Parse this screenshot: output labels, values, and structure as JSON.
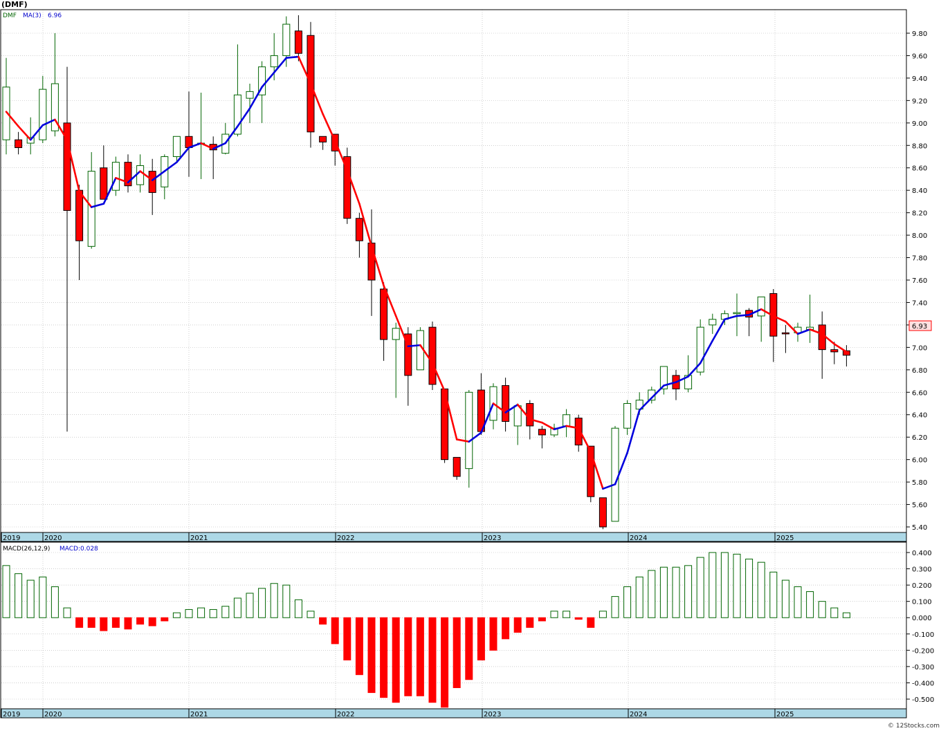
{
  "symbol_label": "(DMF)",
  "legend": {
    "ticker": "DMF",
    "ma_label": "MA(3)",
    "ma_value": "6.96"
  },
  "macd_legend": {
    "label": "MACD(26,12,9)",
    "value_label": "MACD:0.028"
  },
  "last_price_label": "6.93",
  "copyright": "© 12Stocks.com",
  "colors": {
    "up": "#006400",
    "down": "#ff0000",
    "ma_up": "#0000dd",
    "ma_down": "#ff0000",
    "axis_band": "#add8e6",
    "grid": "#b0b0b0"
  },
  "chart_data": [
    {
      "type": "candlestick",
      "title": "",
      "ylim": [
        5.4,
        9.8
      ],
      "yticks": [
        "9.80",
        "9.60",
        "9.40",
        "9.20",
        "9.00",
        "8.80",
        "8.60",
        "8.40",
        "8.20",
        "8.00",
        "7.80",
        "7.60",
        "7.40",
        "7.20",
        "7.00",
        "6.80",
        "6.60",
        "6.40",
        "6.20",
        "6.00",
        "5.80",
        "5.60",
        "5.40"
      ],
      "x_labels": [
        "2019",
        "2020",
        "2021",
        "2022",
        "2023",
        "2024",
        "2025"
      ],
      "grid": true,
      "candles": [
        {
          "o": 8.85,
          "h": 9.58,
          "l": 8.72,
          "c": 9.32
        },
        {
          "o": 8.85,
          "h": 8.92,
          "l": 8.72,
          "c": 8.78
        },
        {
          "o": 8.82,
          "h": 9.05,
          "l": 8.72,
          "c": 8.87
        },
        {
          "o": 8.85,
          "h": 9.42,
          "l": 8.82,
          "c": 9.3
        },
        {
          "o": 8.93,
          "h": 9.8,
          "l": 8.88,
          "c": 9.35
        },
        {
          "o": 9.0,
          "h": 9.5,
          "l": 6.25,
          "c": 8.22
        },
        {
          "o": 8.4,
          "h": 8.45,
          "l": 7.6,
          "c": 7.95
        },
        {
          "o": 7.9,
          "h": 8.74,
          "l": 7.88,
          "c": 8.57
        },
        {
          "o": 8.6,
          "h": 8.8,
          "l": 8.32,
          "c": 8.32
        },
        {
          "o": 8.4,
          "h": 8.7,
          "l": 8.35,
          "c": 8.65
        },
        {
          "o": 8.65,
          "h": 8.72,
          "l": 8.38,
          "c": 8.44
        },
        {
          "o": 8.45,
          "h": 8.72,
          "l": 8.38,
          "c": 8.62
        },
        {
          "o": 8.57,
          "h": 8.68,
          "l": 8.18,
          "c": 8.38
        },
        {
          "o": 8.43,
          "h": 8.72,
          "l": 8.32,
          "c": 8.7
        },
        {
          "o": 8.7,
          "h": 8.88,
          "l": 8.65,
          "c": 8.88
        },
        {
          "o": 8.88,
          "h": 9.28,
          "l": 8.52,
          "c": 8.78
        },
        {
          "o": 8.82,
          "h": 9.27,
          "l": 8.5,
          "c": 8.82
        },
        {
          "o": 8.81,
          "h": 8.88,
          "l": 8.5,
          "c": 8.76
        },
        {
          "o": 8.73,
          "h": 9.0,
          "l": 8.72,
          "c": 8.9
        },
        {
          "o": 8.9,
          "h": 9.7,
          "l": 8.88,
          "c": 9.25
        },
        {
          "o": 9.22,
          "h": 9.35,
          "l": 9.0,
          "c": 9.28
        },
        {
          "o": 9.25,
          "h": 9.55,
          "l": 9.0,
          "c": 9.5
        },
        {
          "o": 9.5,
          "h": 9.8,
          "l": 9.38,
          "c": 9.6
        },
        {
          "o": 9.6,
          "h": 9.95,
          "l": 9.5,
          "c": 9.88
        },
        {
          "o": 9.82,
          "h": 9.96,
          "l": 9.55,
          "c": 9.62
        },
        {
          "o": 9.78,
          "h": 9.9,
          "l": 8.78,
          "c": 8.92
        },
        {
          "o": 8.88,
          "h": 8.88,
          "l": 8.76,
          "c": 8.83
        },
        {
          "o": 8.9,
          "h": 8.9,
          "l": 8.62,
          "c": 8.75
        },
        {
          "o": 8.7,
          "h": 8.78,
          "l": 8.1,
          "c": 8.15
        },
        {
          "o": 8.15,
          "h": 8.2,
          "l": 7.8,
          "c": 7.95
        },
        {
          "o": 7.93,
          "h": 8.23,
          "l": 7.28,
          "c": 7.6
        },
        {
          "o": 7.52,
          "h": 7.58,
          "l": 6.88,
          "c": 7.07
        },
        {
          "o": 7.07,
          "h": 7.22,
          "l": 6.55,
          "c": 7.17
        },
        {
          "o": 7.12,
          "h": 7.18,
          "l": 6.48,
          "c": 6.75
        },
        {
          "o": 6.8,
          "h": 7.18,
          "l": 6.8,
          "c": 7.15
        },
        {
          "o": 7.18,
          "h": 7.23,
          "l": 6.62,
          "c": 6.67
        },
        {
          "o": 6.63,
          "h": 6.63,
          "l": 5.97,
          "c": 6.0
        },
        {
          "o": 6.02,
          "h": 6.02,
          "l": 5.82,
          "c": 5.85
        },
        {
          "o": 5.92,
          "h": 6.62,
          "l": 5.75,
          "c": 6.6
        },
        {
          "o": 6.62,
          "h": 6.77,
          "l": 6.22,
          "c": 6.25
        },
        {
          "o": 6.35,
          "h": 6.68,
          "l": 6.27,
          "c": 6.65
        },
        {
          "o": 6.66,
          "h": 6.73,
          "l": 6.25,
          "c": 6.34
        },
        {
          "o": 6.3,
          "h": 6.5,
          "l": 6.13,
          "c": 6.48
        },
        {
          "o": 6.5,
          "h": 6.53,
          "l": 6.18,
          "c": 6.3
        },
        {
          "o": 6.27,
          "h": 6.3,
          "l": 6.1,
          "c": 6.22
        },
        {
          "o": 6.22,
          "h": 6.32,
          "l": 6.2,
          "c": 6.28
        },
        {
          "o": 6.3,
          "h": 6.45,
          "l": 6.2,
          "c": 6.4
        },
        {
          "o": 6.37,
          "h": 6.4,
          "l": 6.07,
          "c": 6.13
        },
        {
          "o": 6.12,
          "h": 6.12,
          "l": 5.62,
          "c": 5.67
        },
        {
          "o": 5.66,
          "h": 5.66,
          "l": 5.38,
          "c": 5.4
        },
        {
          "o": 5.45,
          "h": 6.3,
          "l": 5.45,
          "c": 6.28
        },
        {
          "o": 6.28,
          "h": 6.53,
          "l": 6.22,
          "c": 6.5
        },
        {
          "o": 6.45,
          "h": 6.6,
          "l": 6.4,
          "c": 6.53
        },
        {
          "o": 6.53,
          "h": 6.65,
          "l": 6.5,
          "c": 6.62
        },
        {
          "o": 6.63,
          "h": 6.83,
          "l": 6.58,
          "c": 6.83
        },
        {
          "o": 6.75,
          "h": 6.8,
          "l": 6.53,
          "c": 6.63
        },
        {
          "o": 6.63,
          "h": 6.93,
          "l": 6.6,
          "c": 6.75
        },
        {
          "o": 6.78,
          "h": 7.25,
          "l": 6.75,
          "c": 7.18
        },
        {
          "o": 7.2,
          "h": 7.3,
          "l": 7.12,
          "c": 7.25
        },
        {
          "o": 7.25,
          "h": 7.33,
          "l": 7.2,
          "c": 7.3
        },
        {
          "o": 7.3,
          "h": 7.48,
          "l": 7.1,
          "c": 7.31
        },
        {
          "o": 7.33,
          "h": 7.35,
          "l": 7.1,
          "c": 7.27
        },
        {
          "o": 7.28,
          "h": 7.45,
          "l": 7.05,
          "c": 7.45
        },
        {
          "o": 7.48,
          "h": 7.52,
          "l": 6.87,
          "c": 7.1
        },
        {
          "o": 7.13,
          "h": 7.2,
          "l": 6.95,
          "c": 7.12
        },
        {
          "o": 7.13,
          "h": 7.22,
          "l": 7.05,
          "c": 7.18
        },
        {
          "o": 7.16,
          "h": 7.47,
          "l": 7.04,
          "c": 7.18
        },
        {
          "o": 7.2,
          "h": 7.32,
          "l": 6.72,
          "c": 6.98
        },
        {
          "o": 6.98,
          "h": 7.05,
          "l": 6.85,
          "c": 6.96
        },
        {
          "o": 6.97,
          "h": 7.02,
          "l": 6.83,
          "c": 6.93
        }
      ],
      "ma3": [
        9.1,
        8.97,
        8.85,
        8.98,
        9.03,
        8.85,
        8.39,
        8.25,
        8.28,
        8.51,
        8.47,
        8.57,
        8.49,
        8.57,
        8.65,
        8.78,
        8.82,
        8.77,
        8.82,
        8.97,
        9.13,
        9.32,
        9.45,
        9.58,
        9.59,
        9.35,
        9.08,
        8.84,
        8.58,
        8.28,
        7.9,
        7.55,
        7.28,
        7.01,
        7.02,
        6.86,
        6.61,
        6.18,
        6.16,
        6.24,
        6.5,
        6.42,
        6.49,
        6.36,
        6.33,
        6.27,
        6.3,
        6.28,
        6.07,
        5.74,
        5.78,
        6.06,
        6.44,
        6.55,
        6.66,
        6.69,
        6.74,
        6.86,
        7.06,
        7.25,
        7.28,
        7.29,
        7.34,
        7.28,
        7.23,
        7.12,
        7.16,
        7.12,
        7.03,
        6.96
      ]
    },
    {
      "type": "bar",
      "title": "",
      "ylim": [
        -0.55,
        0.44
      ],
      "yticks": [
        "0.400",
        "0.300",
        "0.200",
        "0.100",
        "0.000",
        "-0.100",
        "-0.200",
        "-0.300",
        "-0.400",
        "-0.500"
      ],
      "x_labels": [
        "2019",
        "2020",
        "2021",
        "2022",
        "2023",
        "2024",
        "2025"
      ],
      "values": [
        0.32,
        0.27,
        0.23,
        0.25,
        0.19,
        0.06,
        -0.06,
        -0.06,
        -0.08,
        -0.06,
        -0.07,
        -0.04,
        -0.05,
        -0.02,
        0.03,
        0.05,
        0.06,
        0.05,
        0.07,
        0.12,
        0.15,
        0.18,
        0.21,
        0.2,
        0.11,
        0.04,
        -0.04,
        -0.16,
        -0.26,
        -0.35,
        -0.46,
        -0.49,
        -0.52,
        -0.48,
        -0.48,
        -0.52,
        -0.55,
        -0.43,
        -0.38,
        -0.26,
        -0.2,
        -0.13,
        -0.09,
        -0.06,
        -0.02,
        0.04,
        0.04,
        -0.01,
        -0.06,
        0.04,
        0.13,
        0.19,
        0.25,
        0.29,
        0.31,
        0.31,
        0.32,
        0.37,
        0.4,
        0.4,
        0.39,
        0.36,
        0.34,
        0.28,
        0.23,
        0.19,
        0.16,
        0.1,
        0.06,
        0.03
      ]
    }
  ]
}
